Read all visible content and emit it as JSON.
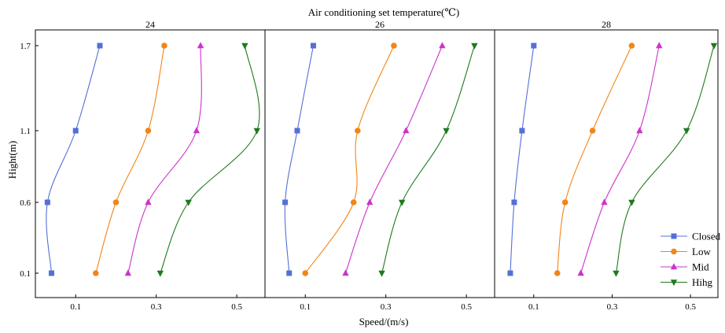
{
  "chart_data": {
    "type": "line",
    "title": "Air conditioning set temperature(℃)",
    "xlabel": "Speed/(m/s)",
    "ylabel": "Hight(m)",
    "xlim": [
      0,
      0.57
    ],
    "y_categories": [
      "0.1",
      "0.6",
      "1.1",
      "1.7"
    ],
    "x_ticks": [
      0.1,
      0.3,
      0.5
    ],
    "x_tick_labels": [
      "0.1",
      "0.3",
      "0.5"
    ],
    "grid": false,
    "legend_position": "bottom-right",
    "series_styles": [
      {
        "name": "Closed",
        "color": "#5470d6",
        "marker": "square"
      },
      {
        "name": "Low",
        "color": "#f28518",
        "marker": "circle"
      },
      {
        "name": "Mid",
        "color": "#cc33cc",
        "marker": "triangle-up"
      },
      {
        "name": "Hihg",
        "color": "#1e7a1e",
        "marker": "triangle-down"
      }
    ],
    "panels": [
      {
        "label": "24",
        "series": [
          {
            "name": "Closed",
            "values": [
              0.04,
              0.03,
              0.1,
              0.16
            ]
          },
          {
            "name": "Low",
            "values": [
              0.15,
              0.2,
              0.28,
              0.32
            ]
          },
          {
            "name": "Mid",
            "values": [
              0.23,
              0.28,
              0.4,
              0.41
            ]
          },
          {
            "name": "Hihg",
            "values": [
              0.31,
              0.38,
              0.55,
              0.52
            ]
          }
        ]
      },
      {
        "label": "26",
        "series": [
          {
            "name": "Closed",
            "values": [
              0.06,
              0.05,
              0.08,
              0.12
            ]
          },
          {
            "name": "Low",
            "values": [
              0.1,
              0.22,
              0.23,
              0.32
            ]
          },
          {
            "name": "Mid",
            "values": [
              0.2,
              0.26,
              0.35,
              0.44
            ]
          },
          {
            "name": "Hihg",
            "values": [
              0.29,
              0.34,
              0.45,
              0.52
            ]
          }
        ]
      },
      {
        "label": "28",
        "series": [
          {
            "name": "Closed",
            "values": [
              0.04,
              0.05,
              0.07,
              0.1
            ]
          },
          {
            "name": "Low",
            "values": [
              0.16,
              0.18,
              0.25,
              0.35
            ]
          },
          {
            "name": "Mid",
            "values": [
              0.22,
              0.28,
              0.37,
              0.42
            ]
          },
          {
            "name": "Hihg",
            "values": [
              0.31,
              0.35,
              0.49,
              0.56
            ]
          }
        ]
      }
    ]
  }
}
